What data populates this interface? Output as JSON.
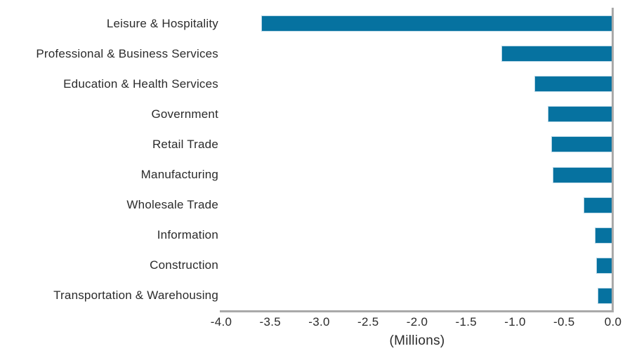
{
  "chart_data": {
    "type": "bar",
    "orientation": "horizontal",
    "title": "",
    "xlabel": "(Millions)",
    "ylabel": "",
    "xlim": [
      -4.0,
      0.0
    ],
    "x_ticks": [
      "-4.0",
      "-3.5",
      "-3.0",
      "-2.5",
      "-2.0",
      "-1.5",
      "-1.0",
      "-0.5",
      "0.0"
    ],
    "grid": false,
    "legend": null,
    "categories": [
      "Leisure & Hospitality",
      "Professional & Business Services",
      "Education & Health Services",
      "Government",
      "Retail Trade",
      "Manufacturing",
      "Wholesale Trade",
      "Information",
      "Construction",
      "Transportation & Warehousing"
    ],
    "values": [
      -3.59,
      -1.14,
      -0.8,
      -0.67,
      -0.63,
      -0.62,
      -0.3,
      -0.19,
      -0.17,
      -0.16
    ],
    "colors": {
      "bar": "#0672A0",
      "bar_border": "#BCD9E8",
      "axis": "#A9A9A9",
      "text": "#2B2B2B",
      "background": "#FFFFFF"
    }
  }
}
